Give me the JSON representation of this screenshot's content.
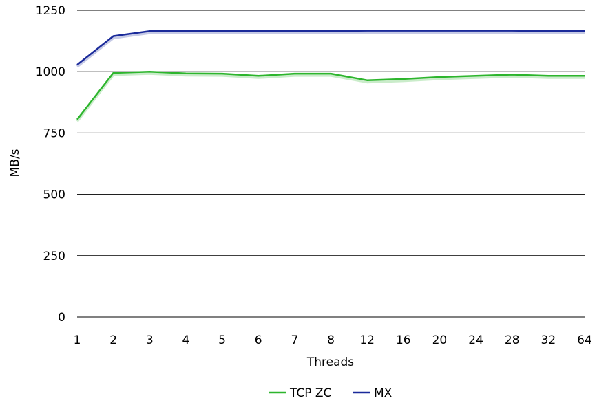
{
  "chart_data": {
    "type": "line",
    "title": "",
    "xlabel": "Threads",
    "ylabel": "MB/s",
    "categories": [
      "1",
      "2",
      "3",
      "4",
      "5",
      "6",
      "7",
      "8",
      "12",
      "16",
      "20",
      "24",
      "28",
      "32",
      "64"
    ],
    "ylim": [
      0,
      1250
    ],
    "yticks": [
      0,
      250,
      500,
      750,
      1000,
      1250
    ],
    "grid": true,
    "legend_position": "bottom",
    "series": [
      {
        "name": "TCP ZC",
        "color": "#2db52d",
        "values": [
          805,
          995,
          1000,
          993,
          992,
          983,
          992,
          992,
          965,
          970,
          978,
          983,
          988,
          983,
          983
        ]
      },
      {
        "name": "MX",
        "color": "#1a2a9a",
        "values": [
          1028,
          1145,
          1165,
          1165,
          1165,
          1165,
          1167,
          1165,
          1167,
          1167,
          1167,
          1167,
          1167,
          1165,
          1165
        ]
      }
    ]
  }
}
